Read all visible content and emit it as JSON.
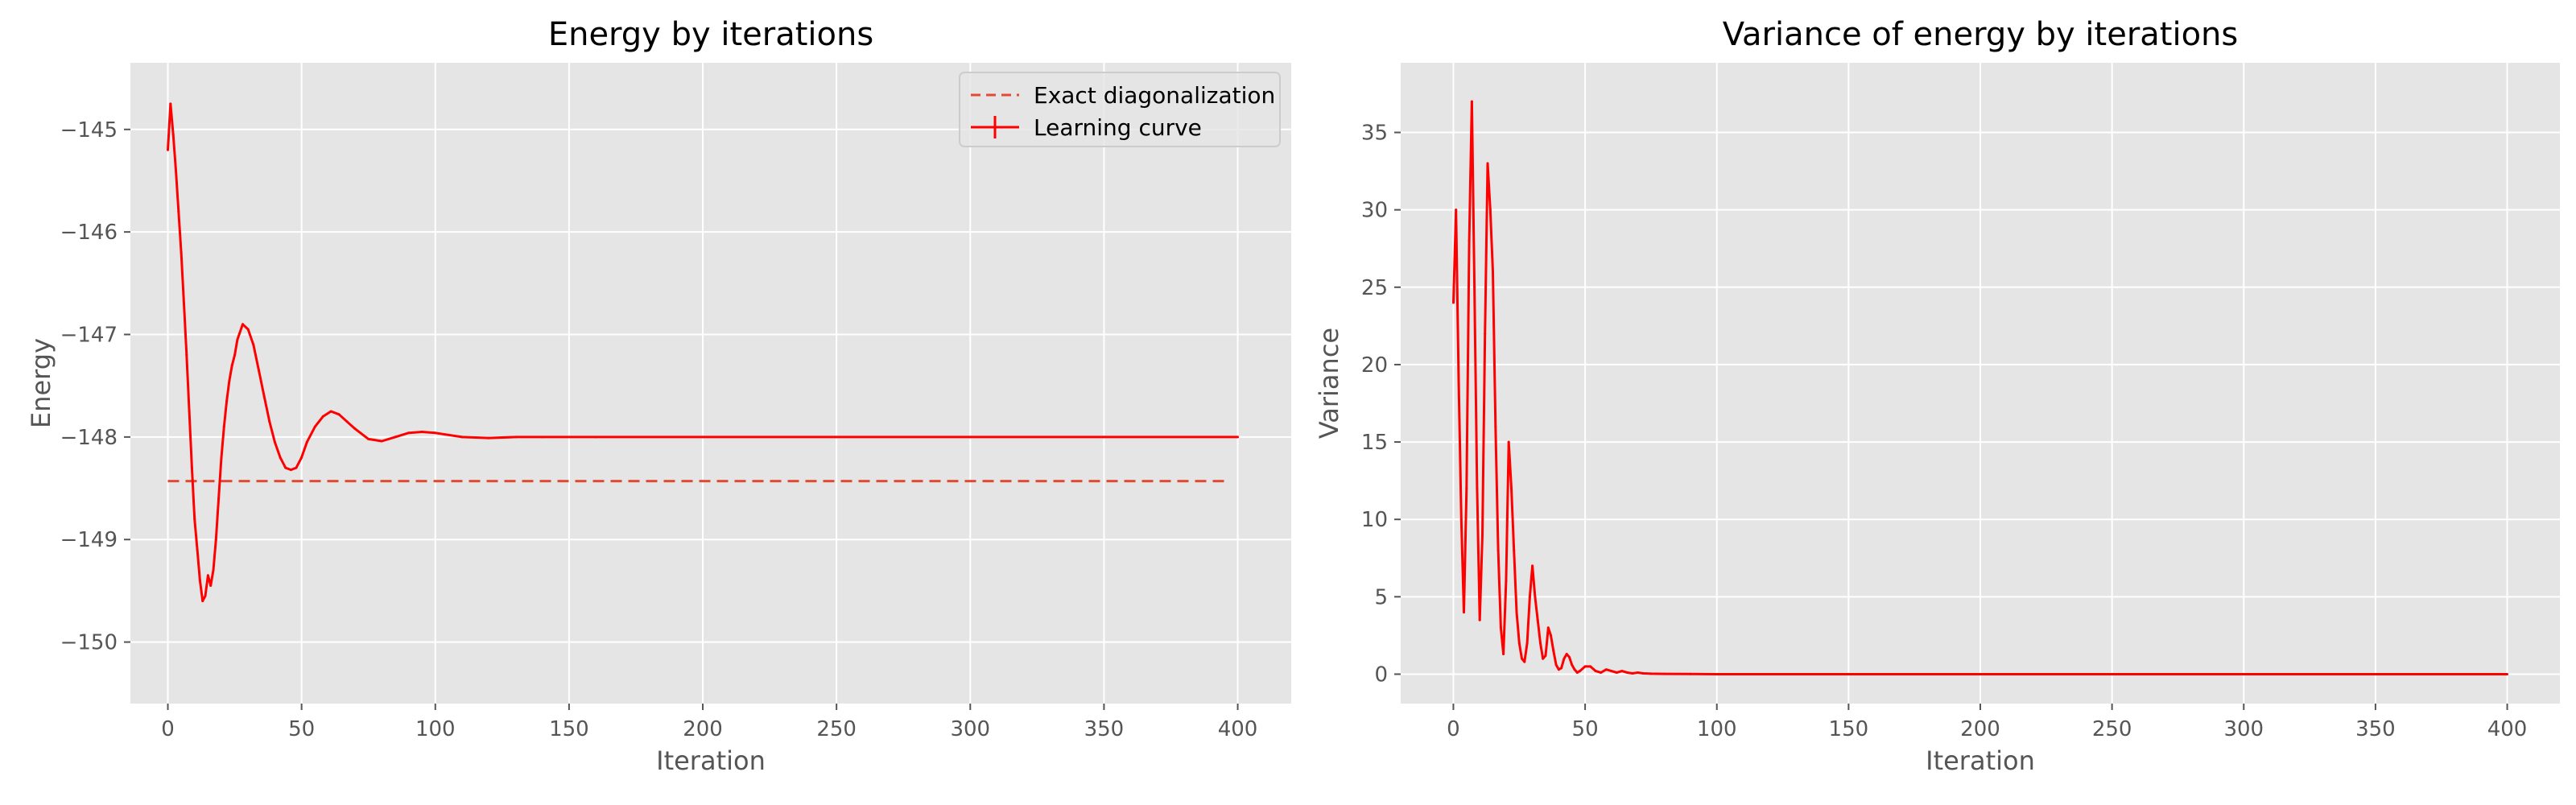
{
  "chart_data": [
    {
      "type": "line",
      "title": "Energy by iterations",
      "xlabel": "Iteration",
      "ylabel": "Energy",
      "xlim": [
        -14,
        420
      ],
      "ylim": [
        -150.6,
        -144.35
      ],
      "xticks": [
        0,
        50,
        100,
        150,
        200,
        250,
        300,
        350,
        400
      ],
      "yticks": [
        -150,
        -149,
        -148,
        -147,
        -146,
        -145
      ],
      "grid": true,
      "legend": "top-right",
      "series": [
        {
          "name": "Exact diagonalization",
          "style": "dashed",
          "color": "#e24a33",
          "x": [
            0,
            397
          ],
          "y": [
            -148.43,
            -148.43
          ]
        },
        {
          "name": "Learning curve",
          "style": "solid",
          "color": "#ff0000",
          "error_bars": true,
          "x": [
            0,
            1,
            2,
            3,
            4,
            5,
            6,
            7,
            8,
            9,
            10,
            11,
            12,
            13,
            14,
            15,
            16,
            17,
            18,
            19,
            20,
            21,
            22,
            23,
            24,
            25,
            26,
            28,
            30,
            32,
            34,
            36,
            38,
            40,
            42,
            44,
            46,
            48,
            50,
            52,
            55,
            58,
            61,
            64,
            67,
            70,
            75,
            80,
            85,
            90,
            95,
            100,
            110,
            120,
            130,
            140,
            160,
            200,
            250,
            300,
            350,
            400
          ],
          "y": [
            -145.2,
            -144.75,
            -145.05,
            -145.4,
            -145.8,
            -146.2,
            -146.7,
            -147.2,
            -147.75,
            -148.3,
            -148.8,
            -149.1,
            -149.4,
            -149.6,
            -149.55,
            -149.35,
            -149.45,
            -149.3,
            -149.0,
            -148.6,
            -148.2,
            -147.9,
            -147.65,
            -147.45,
            -147.3,
            -147.2,
            -147.05,
            -146.9,
            -146.95,
            -147.1,
            -147.35,
            -147.6,
            -147.85,
            -148.05,
            -148.2,
            -148.3,
            -148.32,
            -148.3,
            -148.2,
            -148.05,
            -147.9,
            -147.8,
            -147.75,
            -147.78,
            -147.85,
            -147.92,
            -148.02,
            -148.04,
            -148.0,
            -147.96,
            -147.95,
            -147.96,
            -148.0,
            -148.01,
            -148.0,
            -148.0,
            -148.0,
            -148.0,
            -148.0,
            -148.0,
            -148.0,
            -148.0
          ]
        }
      ]
    },
    {
      "type": "line",
      "title": "Variance of energy by iterations",
      "xlabel": "Iteration",
      "ylabel": "Variance",
      "xlim": [
        -20,
        420
      ],
      "ylim": [
        -1.9,
        39.5
      ],
      "xticks": [
        0,
        50,
        100,
        150,
        200,
        250,
        300,
        350,
        400
      ],
      "yticks": [
        0,
        5,
        10,
        15,
        20,
        25,
        30,
        35
      ],
      "grid": true,
      "series": [
        {
          "color": "#ff0000",
          "x": [
            0,
            1,
            2,
            3,
            4,
            5,
            6,
            7,
            8,
            9,
            10,
            11,
            12,
            13,
            14,
            15,
            16,
            17,
            18,
            19,
            20,
            21,
            22,
            23,
            24,
            25,
            26,
            27,
            28,
            29,
            30,
            31,
            32,
            33,
            34,
            35,
            36,
            37,
            38,
            39,
            40,
            41,
            42,
            43,
            44,
            45,
            46,
            47,
            48,
            50,
            52,
            54,
            56,
            58,
            60,
            62,
            64,
            66,
            68,
            70,
            72,
            75,
            80,
            90,
            100,
            150,
            200,
            250,
            300,
            350,
            400
          ],
          "y": [
            24,
            30,
            19,
            10,
            4,
            12,
            28,
            37,
            25,
            12,
            3.5,
            9,
            22,
            33,
            30,
            26,
            16,
            8,
            3,
            1.3,
            6,
            15,
            12,
            8,
            4,
            2,
            1,
            0.8,
            2,
            5,
            7,
            5,
            3.5,
            2,
            1,
            1.2,
            3,
            2.5,
            1.5,
            0.6,
            0.3,
            0.4,
            1,
            1.3,
            1.1,
            0.6,
            0.3,
            0.1,
            0.2,
            0.5,
            0.5,
            0.2,
            0.1,
            0.3,
            0.2,
            0.1,
            0.2,
            0.1,
            0.05,
            0.1,
            0.05,
            0.03,
            0.02,
            0.01,
            0,
            0,
            0,
            0,
            0,
            0,
            0
          ]
        }
      ]
    }
  ]
}
